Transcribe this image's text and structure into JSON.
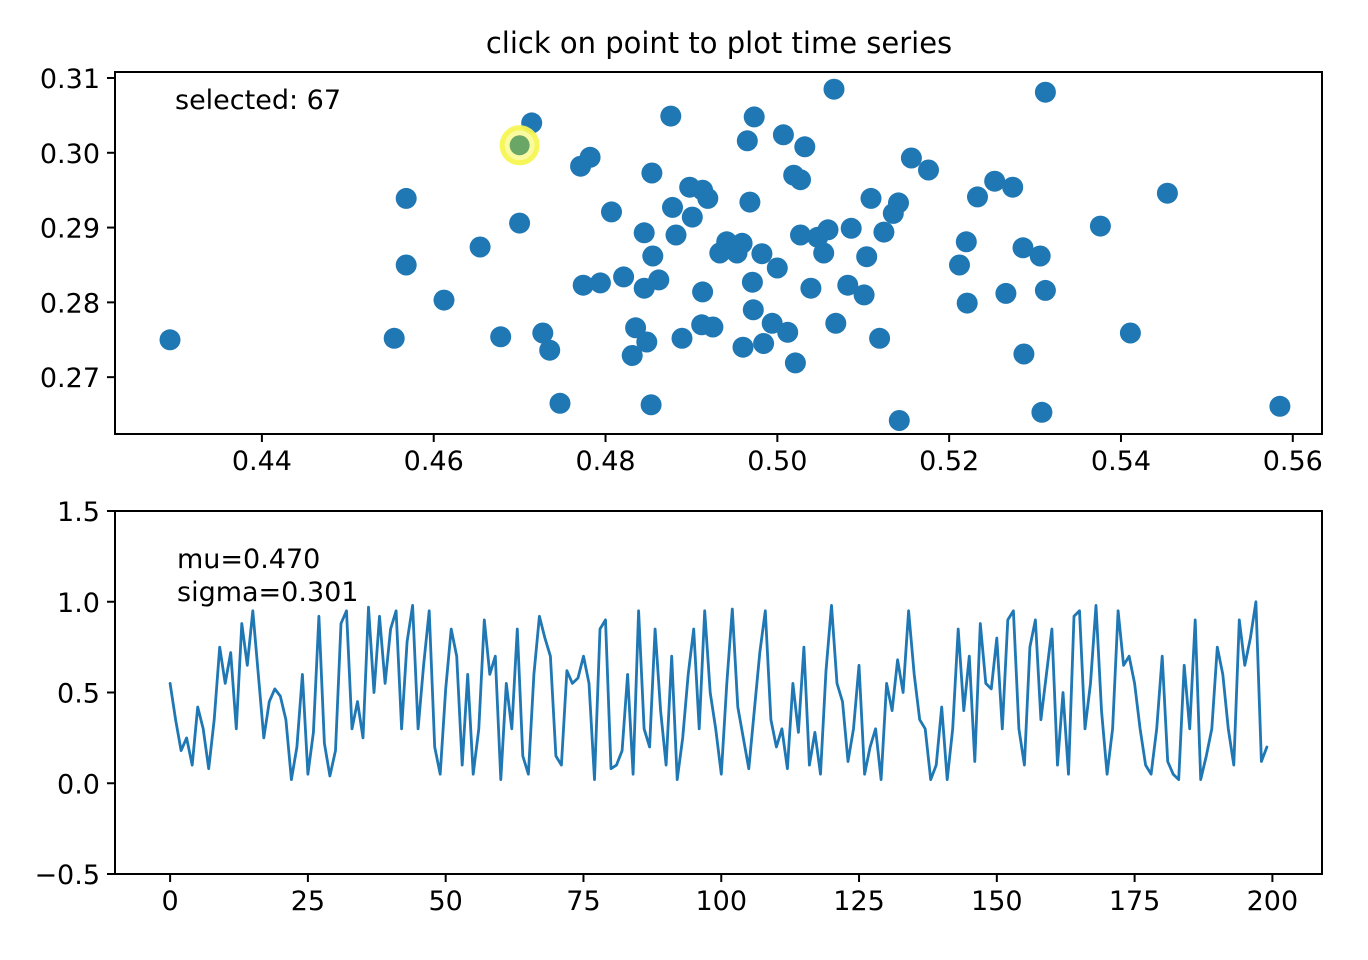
{
  "figure": {
    "title": "click on point to plot time series",
    "background_color": "#ffffff"
  },
  "colors": {
    "marker_blue": "#1f77b4",
    "line_blue": "#1f77b4",
    "selected_green": "#6aa767",
    "selected_halo_yellow": "#f6f554",
    "axis_black": "#000000"
  },
  "chart_data": [
    {
      "type": "scatter",
      "title": "click on point to plot time series",
      "annotation": "selected: 67",
      "xlim": [
        0.4229,
        0.5634
      ],
      "ylim": [
        0.2624,
        0.3108
      ],
      "xticks": [
        0.44,
        0.46,
        0.48,
        0.5,
        0.52,
        0.54,
        0.56
      ],
      "xtick_labels": [
        "0.44",
        "0.46",
        "0.48",
        "0.50",
        "0.52",
        "0.54",
        "0.56"
      ],
      "yticks": [
        0.27,
        0.28,
        0.29,
        0.3,
        0.31
      ],
      "ytick_labels": [
        "0.27",
        "0.28",
        "0.29",
        "0.30",
        "0.31"
      ],
      "grid": false,
      "legend": false,
      "marker_color": "#1f77b4",
      "selected_point": {
        "index_label": "67",
        "x": 0.47,
        "y": 0.301
      },
      "points": [
        [
          0.4568,
          0.2939
        ],
        [
          0.47,
          0.2906
        ],
        [
          0.4654,
          0.2874
        ],
        [
          0.4714,
          0.304
        ],
        [
          0.4771,
          0.2982
        ],
        [
          0.4782,
          0.2994
        ],
        [
          0.5066,
          0.3085
        ],
        [
          0.4876,
          0.3049
        ],
        [
          0.4973,
          0.3048
        ],
        [
          0.4965,
          0.3016
        ],
        [
          0.5007,
          0.3024
        ],
        [
          0.5032,
          0.3008
        ],
        [
          0.4854,
          0.2973
        ],
        [
          0.4898,
          0.2954
        ],
        [
          0.4913,
          0.295
        ],
        [
          0.4919,
          0.2939
        ],
        [
          0.5019,
          0.297
        ],
        [
          0.5027,
          0.2964
        ],
        [
          0.4968,
          0.2934
        ],
        [
          0.5109,
          0.2939
        ],
        [
          0.5141,
          0.2933
        ],
        [
          0.5156,
          0.2993
        ],
        [
          0.5176,
          0.2977
        ],
        [
          0.4807,
          0.2921
        ],
        [
          0.4878,
          0.2927
        ],
        [
          0.4845,
          0.2893
        ],
        [
          0.4882,
          0.289
        ],
        [
          0.4901,
          0.2914
        ],
        [
          0.4941,
          0.2881
        ],
        [
          0.4959,
          0.2879
        ],
        [
          0.4982,
          0.2865
        ],
        [
          0.5027,
          0.289
        ],
        [
          0.5047,
          0.2887
        ],
        [
          0.5059,
          0.2897
        ],
        [
          0.5086,
          0.2899
        ],
        [
          0.5124,
          0.2894
        ],
        [
          0.5135,
          0.2919
        ],
        [
          0.5104,
          0.2861
        ],
        [
          0.4855,
          0.2862
        ],
        [
          0.5312,
          0.3081
        ],
        [
          0.5253,
          0.2962
        ],
        [
          0.5274,
          0.2954
        ],
        [
          0.5233,
          0.2941
        ],
        [
          0.5454,
          0.2946
        ],
        [
          0.5376,
          0.2902
        ],
        [
          0.522,
          0.2881
        ],
        [
          0.5286,
          0.2873
        ],
        [
          0.5306,
          0.2862
        ],
        [
          0.4293,
          0.275
        ],
        [
          0.4568,
          0.285
        ],
        [
          0.4612,
          0.2803
        ],
        [
          0.4554,
          0.2752
        ],
        [
          0.4678,
          0.2754
        ],
        [
          0.4933,
          0.2866
        ],
        [
          0.4953,
          0.2866
        ],
        [
          0.5,
          0.2846
        ],
        [
          0.5054,
          0.2866
        ],
        [
          0.4774,
          0.2823
        ],
        [
          0.4794,
          0.2826
        ],
        [
          0.4821,
          0.2834
        ],
        [
          0.4845,
          0.2819
        ],
        [
          0.4862,
          0.283
        ],
        [
          0.4913,
          0.2814
        ],
        [
          0.4971,
          0.2827
        ],
        [
          0.5039,
          0.2819
        ],
        [
          0.5082,
          0.2823
        ],
        [
          0.5101,
          0.281
        ],
        [
          0.4972,
          0.279
        ],
        [
          0.4727,
          0.2759
        ],
        [
          0.4735,
          0.2736
        ],
        [
          0.4835,
          0.2766
        ],
        [
          0.4831,
          0.2729
        ],
        [
          0.4848,
          0.2747
        ],
        [
          0.4889,
          0.2752
        ],
        [
          0.4912,
          0.277
        ],
        [
          0.4925,
          0.2767
        ],
        [
          0.496,
          0.274
        ],
        [
          0.4984,
          0.2745
        ],
        [
          0.4994,
          0.2772
        ],
        [
          0.5012,
          0.276
        ],
        [
          0.5068,
          0.2772
        ],
        [
          0.5021,
          0.2719
        ],
        [
          0.5119,
          0.2752
        ],
        [
          0.4747,
          0.2665
        ],
        [
          0.4853,
          0.2663
        ],
        [
          0.5142,
          0.2642
        ],
        [
          0.5212,
          0.285
        ],
        [
          0.5221,
          0.2799
        ],
        [
          0.5266,
          0.2812
        ],
        [
          0.5312,
          0.2816
        ],
        [
          0.5411,
          0.2759
        ],
        [
          0.5287,
          0.2731
        ],
        [
          0.5308,
          0.2653
        ],
        [
          0.5585,
          0.2661
        ]
      ]
    },
    {
      "type": "line",
      "annotations": [
        "mu=0.470",
        "sigma=0.301"
      ],
      "xlim": [
        -10,
        209
      ],
      "ylim": [
        -0.5,
        1.5
      ],
      "xticks": [
        0,
        25,
        50,
        75,
        100,
        125,
        150,
        175,
        200
      ],
      "xtick_labels": [
        "0",
        "25",
        "50",
        "75",
        "100",
        "125",
        "150",
        "175",
        "200"
      ],
      "yticks": [
        -0.5,
        0.0,
        0.5,
        1.0,
        1.5
      ],
      "ytick_labels": [
        "−0.5",
        "0.0",
        "0.5",
        "1.0",
        "1.5"
      ],
      "grid": false,
      "legend": false,
      "line_color": "#1f77b4",
      "x_start": 0,
      "x_step": 1,
      "values": [
        0.55,
        0.35,
        0.18,
        0.25,
        0.1,
        0.42,
        0.3,
        0.08,
        0.35,
        0.75,
        0.55,
        0.72,
        0.3,
        0.88,
        0.65,
        0.95,
        0.6,
        0.25,
        0.45,
        0.52,
        0.48,
        0.35,
        0.02,
        0.2,
        0.6,
        0.05,
        0.28,
        0.92,
        0.22,
        0.04,
        0.18,
        0.88,
        0.95,
        0.3,
        0.45,
        0.25,
        0.97,
        0.5,
        0.92,
        0.55,
        0.85,
        0.95,
        0.3,
        0.78,
        0.98,
        0.3,
        0.65,
        0.95,
        0.2,
        0.05,
        0.52,
        0.85,
        0.7,
        0.1,
        0.6,
        0.05,
        0.3,
        0.9,
        0.6,
        0.7,
        0.02,
        0.55,
        0.3,
        0.85,
        0.15,
        0.05,
        0.6,
        0.92,
        0.8,
        0.7,
        0.15,
        0.1,
        0.62,
        0.55,
        0.58,
        0.7,
        0.55,
        0.02,
        0.85,
        0.9,
        0.08,
        0.1,
        0.18,
        0.6,
        0.05,
        0.95,
        0.3,
        0.2,
        0.85,
        0.4,
        0.1,
        0.7,
        0.02,
        0.25,
        0.6,
        0.85,
        0.3,
        0.95,
        0.5,
        0.3,
        0.05,
        0.55,
        0.96,
        0.42,
        0.25,
        0.08,
        0.4,
        0.72,
        0.95,
        0.35,
        0.2,
        0.3,
        0.08,
        0.55,
        0.28,
        0.75,
        0.1,
        0.28,
        0.05,
        0.62,
        0.98,
        0.55,
        0.45,
        0.12,
        0.3,
        0.65,
        0.05,
        0.2,
        0.3,
        0.02,
        0.55,
        0.4,
        0.68,
        0.5,
        0.95,
        0.6,
        0.35,
        0.3,
        0.02,
        0.1,
        0.42,
        0.02,
        0.3,
        0.85,
        0.4,
        0.7,
        0.12,
        0.88,
        0.55,
        0.52,
        0.8,
        0.3,
        0.9,
        0.95,
        0.3,
        0.1,
        0.75,
        0.9,
        0.35,
        0.6,
        0.85,
        0.1,
        0.5,
        0.05,
        0.92,
        0.95,
        0.3,
        0.55,
        0.98,
        0.4,
        0.05,
        0.3,
        0.95,
        0.65,
        0.7,
        0.55,
        0.3,
        0.1,
        0.05,
        0.3,
        0.7,
        0.12,
        0.05,
        0.02,
        0.65,
        0.3,
        0.9,
        0.02,
        0.15,
        0.3,
        0.75,
        0.6,
        0.3,
        0.1,
        0.9,
        0.65,
        0.8,
        1.0,
        0.12,
        0.2
      ]
    }
  ]
}
